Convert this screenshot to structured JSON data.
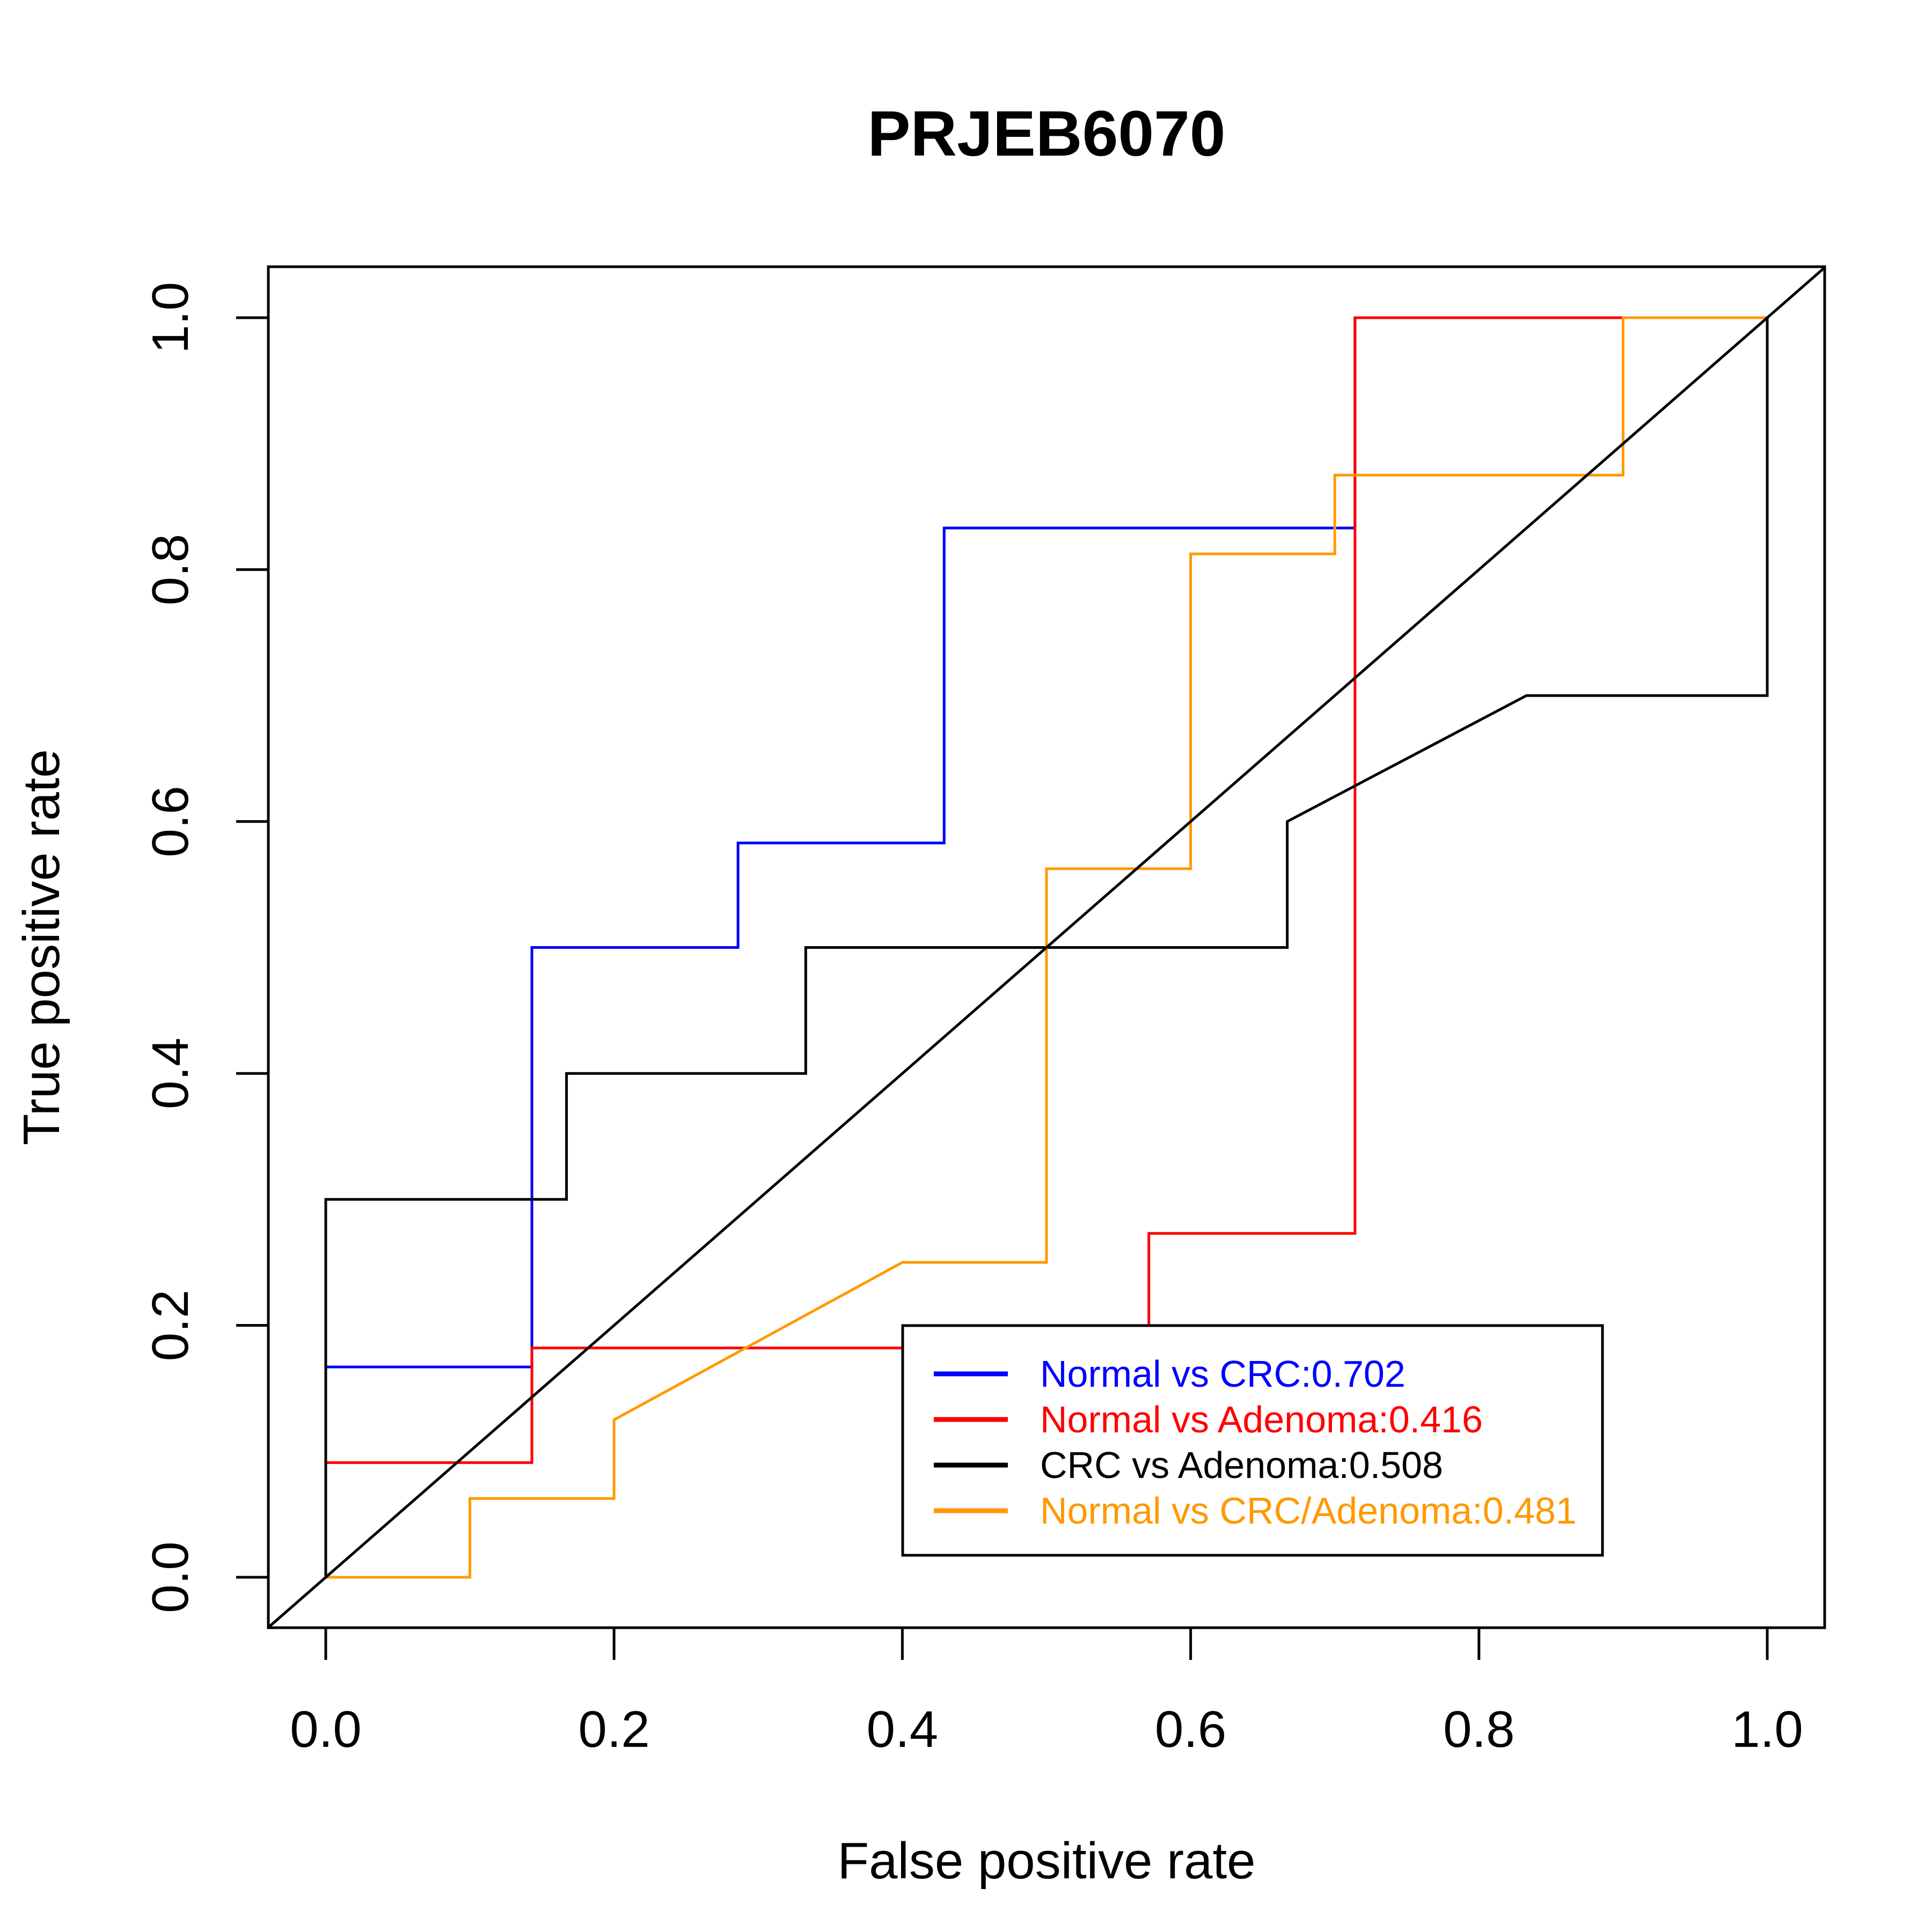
{
  "chart_data": {
    "type": "line",
    "title": "PRJEB6070",
    "xlabel": "False positive rate",
    "ylabel": "True positive rate",
    "xlim": [
      0,
      1
    ],
    "ylim": [
      0,
      1
    ],
    "x_ticks": [
      "0.0",
      "0.2",
      "0.4",
      "0.6",
      "0.8",
      "1.0"
    ],
    "y_ticks": [
      "0.0",
      "0.2",
      "0.4",
      "0.6",
      "0.8",
      "1.0"
    ],
    "grid": false,
    "legend_position": "bottom-right",
    "diagonal_reference": true,
    "series": [
      {
        "name": "Normal vs CRC:0.702",
        "color": "#0000FF",
        "points": [
          [
            0,
            0
          ],
          [
            0,
            0.167
          ],
          [
            0.143,
            0.167
          ],
          [
            0.143,
            0.5
          ],
          [
            0.286,
            0.5
          ],
          [
            0.286,
            0.583
          ],
          [
            0.429,
            0.583
          ],
          [
            0.429,
            0.833
          ],
          [
            0.714,
            0.833
          ],
          [
            0.714,
            1.0
          ],
          [
            1.0,
            1.0
          ]
        ]
      },
      {
        "name": "Normal vs Adenoma:0.416",
        "color": "#FF0000",
        "points": [
          [
            0,
            0
          ],
          [
            0,
            0.091
          ],
          [
            0.143,
            0.091
          ],
          [
            0.143,
            0.182
          ],
          [
            0.571,
            0.182
          ],
          [
            0.571,
            0.273
          ],
          [
            0.714,
            0.273
          ],
          [
            0.714,
            1.0
          ],
          [
            1.0,
            1.0
          ]
        ]
      },
      {
        "name": "CRC vs Adenoma:0.508",
        "color": "#000000",
        "points": [
          [
            0,
            0
          ],
          [
            0,
            0.3
          ],
          [
            0.167,
            0.3
          ],
          [
            0.167,
            0.4
          ],
          [
            0.333,
            0.4
          ],
          [
            0.333,
            0.5
          ],
          [
            0.667,
            0.5
          ],
          [
            0.667,
            0.6
          ],
          [
            0.833,
            0.7
          ],
          [
            1.0,
            0.7
          ],
          [
            1.0,
            1.0
          ]
        ]
      },
      {
        "name": "Normal vs CRC/Adenoma:0.481",
        "color": "#FF9900",
        "points": [
          [
            0,
            0
          ],
          [
            0.1,
            0
          ],
          [
            0.1,
            0.0625
          ],
          [
            0.2,
            0.0625
          ],
          [
            0.2,
            0.125
          ],
          [
            0.4,
            0.25
          ],
          [
            0.5,
            0.25
          ],
          [
            0.5,
            0.5625
          ],
          [
            0.6,
            0.5625
          ],
          [
            0.6,
            0.8125
          ],
          [
            0.7,
            0.8125
          ],
          [
            0.7,
            0.875
          ],
          [
            0.9,
            0.875
          ],
          [
            0.9,
            1.0
          ],
          [
            1.0,
            1.0
          ]
        ]
      }
    ]
  }
}
